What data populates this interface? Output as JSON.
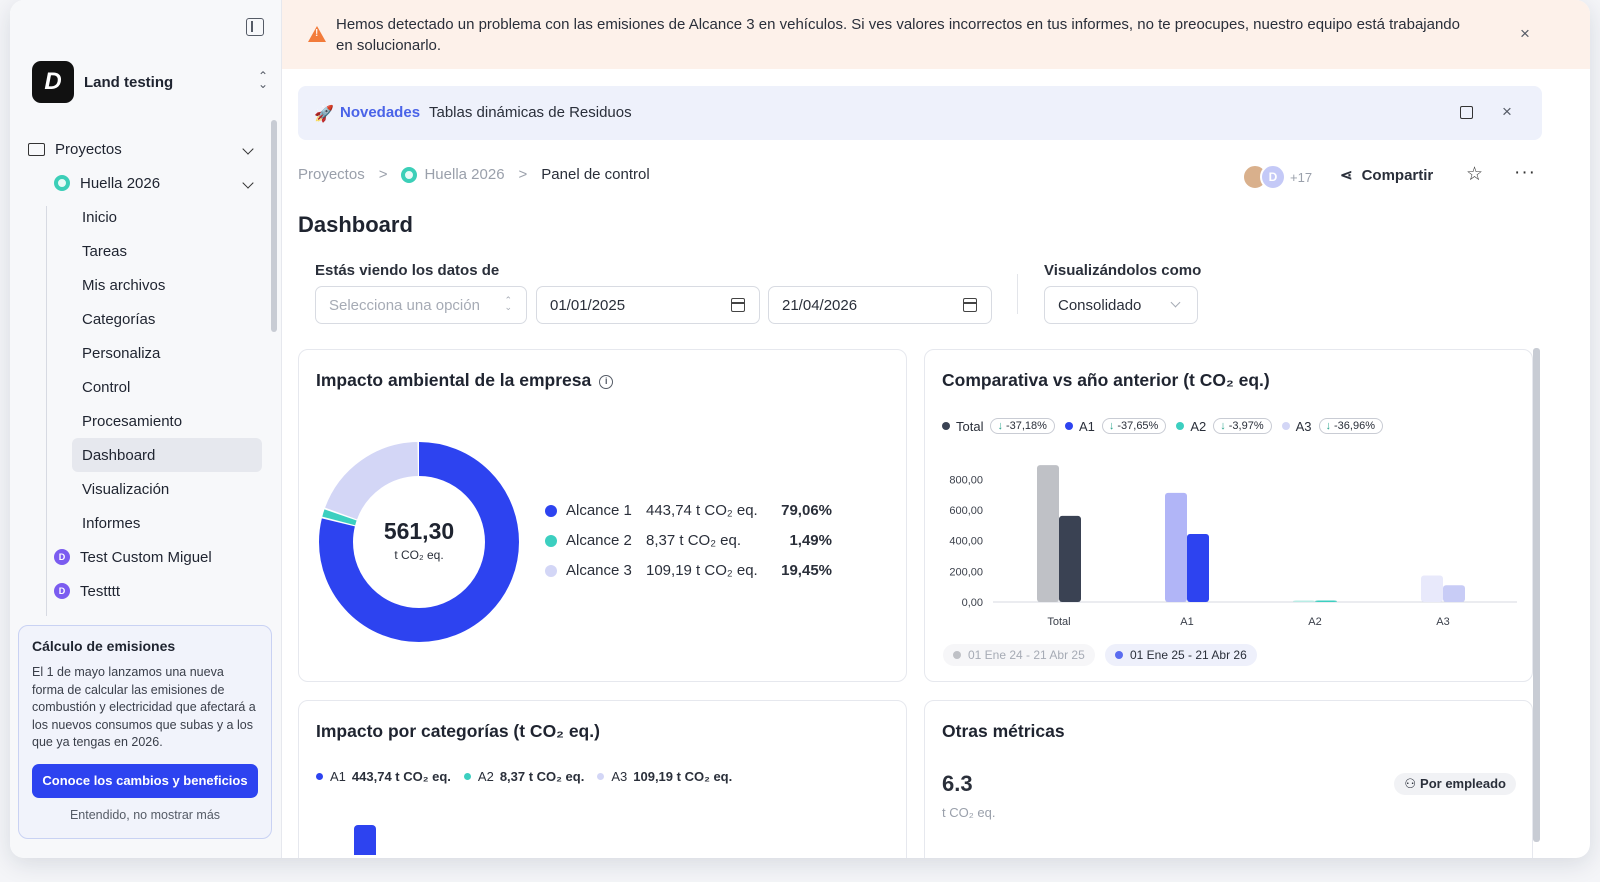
{
  "workspace": {
    "logo_letter": "D",
    "name": "Land testing"
  },
  "nav": {
    "projects_label": "Proyectos",
    "project": "Huella 2026",
    "items": [
      "Inicio",
      "Tareas",
      "Mis archivos",
      "Categorías",
      "Personaliza",
      "Control",
      "Procesamiento",
      "Dashboard",
      "Visualización",
      "Informes"
    ],
    "active_item": "Dashboard",
    "other_projects": [
      "Test Custom Miguel",
      "Testttt"
    ]
  },
  "promo": {
    "title": "Cálculo de emisiones",
    "text": "El 1 de mayo lanzamos una nueva forma de calcular las emisiones de combustión y electricidad que afectará a los nuevos consumos que subas y a los que ya tengas en 2026.",
    "cta": "Conoce los cambios y beneficios",
    "dismiss": "Entendido, no mostrar más"
  },
  "alert": {
    "text": "Hemos detectado un problema con las emisiones de Alcance 3 en vehículos. Si ves valores incorrectos en tus informes, no te preocupes, nuestro equipo está trabajando en solucionarlo.",
    "close": "×"
  },
  "news": {
    "label": "Novedades",
    "text": "Tablas dinámicas de Residuos",
    "close": "×"
  },
  "breadcrumb": {
    "root": "Proyectos",
    "project": "Huella 2026",
    "current": "Panel de control",
    "sep": ">"
  },
  "header_actions": {
    "avatar_letter": "D",
    "more_count": "+17",
    "share": "Compartir",
    "star": "☆",
    "more": "···"
  },
  "page_title": "Dashboard",
  "filters": {
    "data_label": "Estás viendo los datos de",
    "select_placeholder": "Selecciona una opción",
    "start_date": "01/01/2025",
    "end_date": "21/04/2026",
    "view_label": "Visualizándolos como",
    "view_value": "Consolidado"
  },
  "impact_card": {
    "title": "Impacto ambiental de la empresa",
    "total": "561,30",
    "total_unit": "t CO₂ eq.",
    "scopes": [
      {
        "name": "Alcance 1",
        "value": "443,74 t CO₂ eq.",
        "pct": "79,06%",
        "color": "#2d43f0"
      },
      {
        "name": "Alcance 2",
        "value": "8,37 t CO₂ eq.",
        "pct": "1,49%",
        "color": "#3ccfc0"
      },
      {
        "name": "Alcance 3",
        "value": "109,19 t CO₂ eq.",
        "pct": "19,45%",
        "color": "#d3d6f6"
      }
    ]
  },
  "compare_card": {
    "title": "Comparativa vs año anterior (t CO₂ eq.)",
    "legend": [
      {
        "name": "Total",
        "change": "-37,18%",
        "color": "#3a4253"
      },
      {
        "name": "A1",
        "change": "-37,65%",
        "color": "#2d43f0"
      },
      {
        "name": "A2",
        "change": "-3,97%",
        "color": "#3ccfc0"
      },
      {
        "name": "A3",
        "change": "-36,96%",
        "color": "#d3d6f6"
      }
    ],
    "periods": [
      "01 Ene 24 - 21 Abr 25",
      "01 Ene 25 - 21 Abr 26"
    ]
  },
  "chart_data": {
    "type": "bar",
    "categories": [
      "Total",
      "A1",
      "A2",
      "A3"
    ],
    "series": [
      {
        "name": "01 Ene 24 - 21 Abr 25",
        "values": [
          893,
          712,
          8.7,
          173
        ]
      },
      {
        "name": "01 Ene 25 - 21 Abr 26",
        "values": [
          561.3,
          443.74,
          8.37,
          109.19
        ]
      }
    ],
    "prev_colors": [
      "#bfc1c6",
      "#b1b5f7",
      "#b9ece5",
      "#e8e9fb"
    ],
    "curr_colors": [
      "#3a4253",
      "#2d43f0",
      "#3ccfc0",
      "#c8ccf6"
    ],
    "y_ticks": [
      "0,00",
      "200,00",
      "400,00",
      "600,00",
      "800,00"
    ],
    "ylim": [
      0,
      900
    ],
    "grid": "horizontal baseline",
    "legend": "top"
  },
  "categories_card": {
    "title": "Impacto por categorías (t CO₂ eq.)",
    "legend": [
      {
        "name": "A1",
        "value": "443,74 t CO₂ eq.",
        "color": "#2d43f0"
      },
      {
        "name": "A2",
        "value": "8,37 t CO₂ eq.",
        "color": "#3ccfc0"
      },
      {
        "name": "A3",
        "value": "109,19 t CO₂ eq.",
        "color": "#d3d6f6"
      }
    ]
  },
  "metrics_card": {
    "title": "Otras métricas",
    "value": "6.3",
    "unit": "t CO₂ eq.",
    "chip": "Por empleado"
  }
}
